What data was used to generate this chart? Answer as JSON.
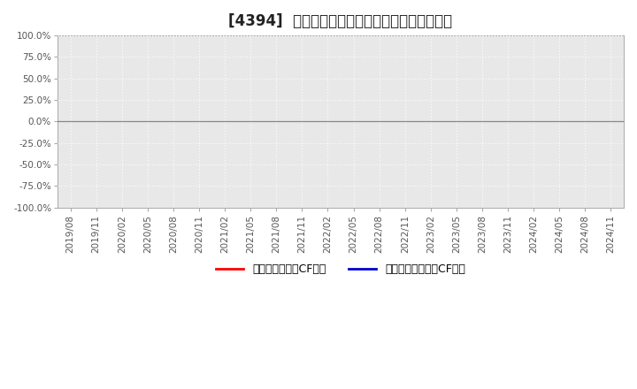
{
  "title": "[4394]  有利子負債キャッシュフロー比率の推移",
  "ylim": [
    -1.0,
    1.0
  ],
  "yticks": [
    -1.0,
    -0.75,
    -0.5,
    -0.25,
    0.0,
    0.25,
    0.5,
    0.75,
    1.0
  ],
  "ytick_labels": [
    "-100.0%",
    "-75.0%",
    "-50.0%",
    "-25.0%",
    "0.0%",
    "25.0%",
    "50.0%",
    "75.0%",
    "100.0%"
  ],
  "x_labels": [
    "2019/08",
    "2019/11",
    "2020/02",
    "2020/05",
    "2020/08",
    "2020/11",
    "2021/02",
    "2021/05",
    "2021/08",
    "2021/11",
    "2022/02",
    "2022/05",
    "2022/08",
    "2022/11",
    "2023/02",
    "2023/05",
    "2023/08",
    "2023/11",
    "2024/02",
    "2024/05",
    "2024/08",
    "2024/11"
  ],
  "legend": [
    {
      "label": "有利子負債営業CF比率",
      "color": "#ff0000"
    },
    {
      "label": "有利子負債フリーCF比率",
      "color": "#0000cc"
    }
  ],
  "bg_color": "#ffffff",
  "plot_bg_color": "#e8e8e8",
  "grid_color": "#ffffff",
  "title_fontsize": 12,
  "axis_fontsize": 7.5,
  "legend_fontsize": 9
}
